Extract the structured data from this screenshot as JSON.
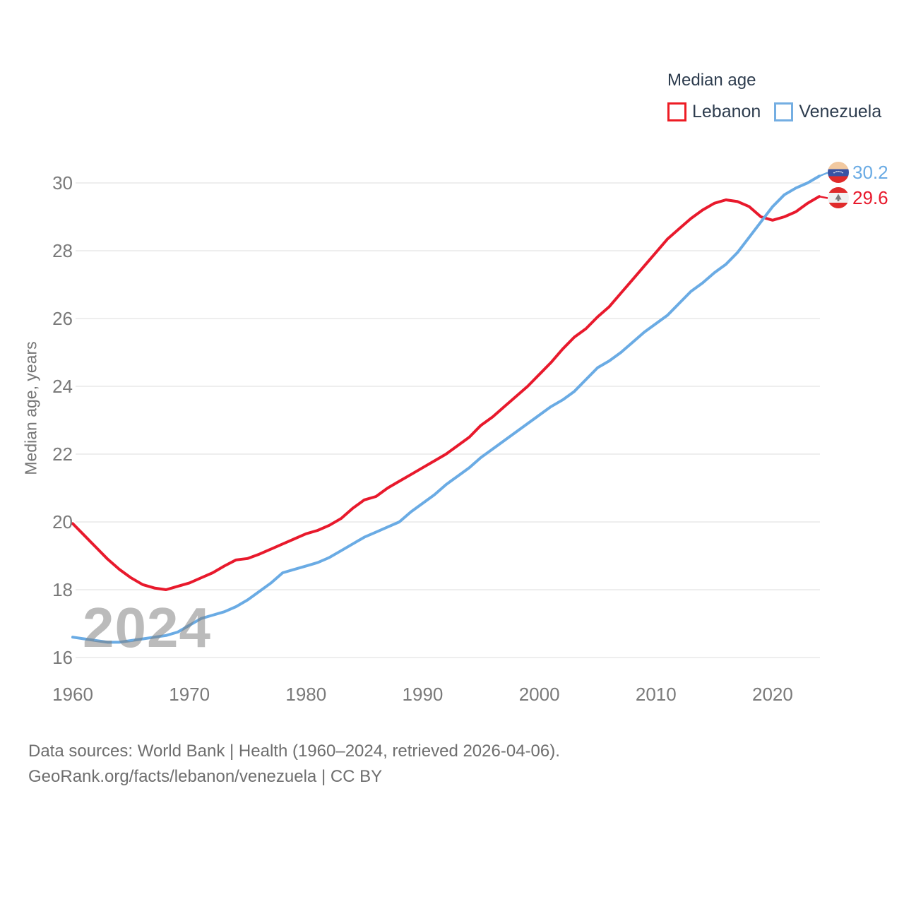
{
  "legend": {
    "title": "Median age",
    "items": [
      {
        "label": "Lebanon",
        "color": "#e8192c"
      },
      {
        "label": "Venezuela",
        "color": "#6aabe4"
      }
    ]
  },
  "end_labels": [
    {
      "country": "Venezuela",
      "value": "30.2",
      "color": "#6aabe4"
    },
    {
      "country": "Lebanon",
      "value": "29.6",
      "color": "#e8192c"
    }
  ],
  "watermark": "2024",
  "footer": {
    "line1": "Data sources: World Bank | Health (1960–2024, retrieved 2026-04-06).",
    "line2": "GeoRank.org/facts/lebanon/venezuela | CC BY"
  },
  "chart_data": {
    "type": "line",
    "title": "Median age",
    "xlabel": "",
    "ylabel": "Median age, years",
    "ylim": [
      16,
      30.4
    ],
    "y_ticks": [
      16,
      18,
      20,
      22,
      24,
      26,
      28,
      30
    ],
    "x_ticks": [
      1960,
      1970,
      1980,
      1990,
      2000,
      2010,
      2020
    ],
    "grid": "horizontal",
    "legend_position": "top-right",
    "years": [
      1960,
      1961,
      1962,
      1963,
      1964,
      1965,
      1966,
      1967,
      1968,
      1969,
      1970,
      1971,
      1972,
      1973,
      1974,
      1975,
      1976,
      1977,
      1978,
      1979,
      1980,
      1981,
      1982,
      1983,
      1984,
      1985,
      1986,
      1987,
      1988,
      1989,
      1990,
      1991,
      1992,
      1993,
      1994,
      1995,
      1996,
      1997,
      1998,
      1999,
      2000,
      2001,
      2002,
      2003,
      2004,
      2005,
      2006,
      2007,
      2008,
      2009,
      2010,
      2011,
      2012,
      2013,
      2014,
      2015,
      2016,
      2017,
      2018,
      2019,
      2020,
      2021,
      2022,
      2023,
      2024
    ],
    "series": [
      {
        "name": "Lebanon",
        "color": "#e8192c",
        "values": [
          19.95,
          19.6,
          19.25,
          18.9,
          18.6,
          18.35,
          18.15,
          18.05,
          18.0,
          18.1,
          18.2,
          18.35,
          18.5,
          18.7,
          18.88,
          18.92,
          19.05,
          19.2,
          19.35,
          19.5,
          19.65,
          19.75,
          19.9,
          20.1,
          20.4,
          20.65,
          20.75,
          21.0,
          21.2,
          21.4,
          21.6,
          21.8,
          22.0,
          22.25,
          22.5,
          22.85,
          23.1,
          23.4,
          23.7,
          24.0,
          24.35,
          24.7,
          25.1,
          25.45,
          25.7,
          26.05,
          26.35,
          26.75,
          27.15,
          27.55,
          27.95,
          28.35,
          28.65,
          28.95,
          29.2,
          29.4,
          29.5,
          29.45,
          29.3,
          29.0,
          28.9,
          29.0,
          29.15,
          29.4,
          29.6
        ]
      },
      {
        "name": "Venezuela",
        "color": "#6aabe4",
        "values": [
          16.6,
          16.55,
          16.5,
          16.45,
          16.45,
          16.5,
          16.55,
          16.6,
          16.65,
          16.75,
          16.95,
          17.15,
          17.25,
          17.35,
          17.5,
          17.7,
          17.95,
          18.2,
          18.5,
          18.6,
          18.7,
          18.8,
          18.95,
          19.15,
          19.35,
          19.55,
          19.7,
          19.85,
          20.0,
          20.3,
          20.55,
          20.8,
          21.1,
          21.35,
          21.6,
          21.9,
          22.15,
          22.4,
          22.65,
          22.9,
          23.15,
          23.4,
          23.6,
          23.85,
          24.2,
          24.55,
          24.75,
          25.0,
          25.3,
          25.6,
          25.85,
          26.1,
          26.45,
          26.8,
          27.05,
          27.35,
          27.6,
          27.95,
          28.4,
          28.85,
          29.3,
          29.65,
          29.85,
          30.0,
          30.2
        ]
      }
    ]
  }
}
